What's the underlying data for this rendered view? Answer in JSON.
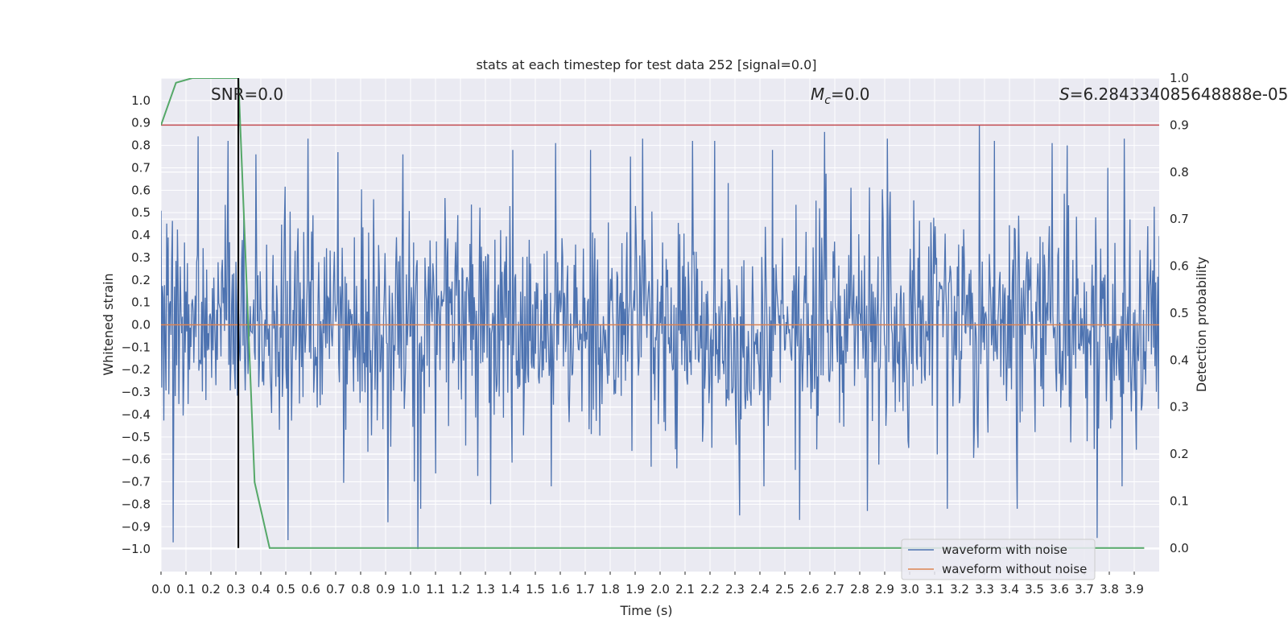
{
  "chart_data": {
    "type": "line",
    "title": "stats at each timestep for test data 252 [signal=0.0]",
    "xlabel": "Time (s)",
    "ylabel": "Whitened strain",
    "y2label": "Detection probability",
    "xlim": [
      0.0,
      4.0
    ],
    "ylim": [
      -1.1,
      1.1
    ],
    "y2lim": [
      -0.05,
      1.0
    ],
    "xticks": [
      "0.0",
      "0.1",
      "0.2",
      "0.3",
      "0.4",
      "0.5",
      "0.6",
      "0.7",
      "0.8",
      "0.9",
      "1.0",
      "1.1",
      "1.2",
      "1.3",
      "1.4",
      "1.5",
      "1.6",
      "1.7",
      "1.8",
      "1.9",
      "2.0",
      "2.1",
      "2.2",
      "2.3",
      "2.4",
      "2.5",
      "2.6",
      "2.7",
      "2.8",
      "2.9",
      "3.0",
      "3.1",
      "3.2",
      "3.3",
      "3.4",
      "3.5",
      "3.6",
      "3.7",
      "3.8",
      "3.9"
    ],
    "yticks": [
      "1.0",
      "0.9",
      "0.8",
      "0.7",
      "0.6",
      "0.5",
      "0.4",
      "0.3",
      "0.2",
      "0.1",
      "0.0",
      "−0.1",
      "−0.2",
      "−0.3",
      "−0.4",
      "−0.5",
      "−0.6",
      "−0.7",
      "−0.8",
      "−0.9",
      "−1.0"
    ],
    "y2ticks": [
      "1.0",
      "0.9",
      "0.8",
      "0.7",
      "0.6",
      "0.5",
      "0.4",
      "0.3",
      "0.2",
      "0.1",
      "0.0"
    ],
    "annotations": {
      "snr": "SNR=0.0",
      "mc_symbol": "M",
      "mc_sub": "c",
      "mc_value": "=0.0",
      "s_symbol": "S",
      "s_value": "=6.284334085648888e-05"
    },
    "threshold": 0.9,
    "marker_time": 0.31,
    "noise_sample_count": 1400,
    "noise_spikes": [
      {
        "x": 0.05,
        "y": -0.97
      },
      {
        "x": 0.15,
        "y": 0.84
      },
      {
        "x": 0.27,
        "y": 0.82
      },
      {
        "x": 0.38,
        "y": 0.76
      },
      {
        "x": 0.51,
        "y": -0.96
      },
      {
        "x": 0.59,
        "y": 0.83
      },
      {
        "x": 0.71,
        "y": 0.77
      },
      {
        "x": 0.91,
        "y": -0.88
      },
      {
        "x": 0.97,
        "y": 0.76
      },
      {
        "x": 1.03,
        "y": -1.0
      },
      {
        "x": 1.04,
        "y": -0.82
      },
      {
        "x": 1.32,
        "y": -0.8
      },
      {
        "x": 1.41,
        "y": 0.78
      },
      {
        "x": 1.58,
        "y": 0.81
      },
      {
        "x": 1.72,
        "y": 0.78
      },
      {
        "x": 1.88,
        "y": 0.75
      },
      {
        "x": 1.93,
        "y": 0.83
      },
      {
        "x": 2.13,
        "y": 0.82
      },
      {
        "x": 2.22,
        "y": 0.82
      },
      {
        "x": 2.32,
        "y": -0.85
      },
      {
        "x": 2.45,
        "y": 0.78
      },
      {
        "x": 2.56,
        "y": -0.87
      },
      {
        "x": 2.66,
        "y": 0.86
      },
      {
        "x": 2.83,
        "y": -0.83
      },
      {
        "x": 2.91,
        "y": 0.83
      },
      {
        "x": 3.15,
        "y": -0.82
      },
      {
        "x": 3.28,
        "y": 0.89
      },
      {
        "x": 3.34,
        "y": 0.82
      },
      {
        "x": 3.43,
        "y": -0.82
      },
      {
        "x": 3.57,
        "y": 0.81
      },
      {
        "x": 3.63,
        "y": 0.8
      },
      {
        "x": 3.75,
        "y": -0.95
      },
      {
        "x": 3.86,
        "y": 0.83
      }
    ],
    "series": [
      {
        "name": "waveform with noise",
        "color": "#4c72b0",
        "amplitude": 0.32
      },
      {
        "name": "waveform without noise",
        "color": "#dd8452",
        "values": [
          0.0
        ]
      }
    ],
    "probability": {
      "color": "#55a868",
      "x": [
        0.0,
        0.06,
        0.125,
        0.19,
        0.25,
        0.31,
        0.375,
        0.435,
        0.5,
        1.0,
        2.0,
        3.0,
        3.94
      ],
      "y": [
        0.9,
        0.99,
        1.0,
        1.0,
        1.0,
        1.0,
        0.14,
        0.0,
        0.0,
        0.0,
        0.0,
        0.0,
        0.0
      ]
    },
    "threshold_color": "#c44e52",
    "marker_color": "#000000"
  }
}
